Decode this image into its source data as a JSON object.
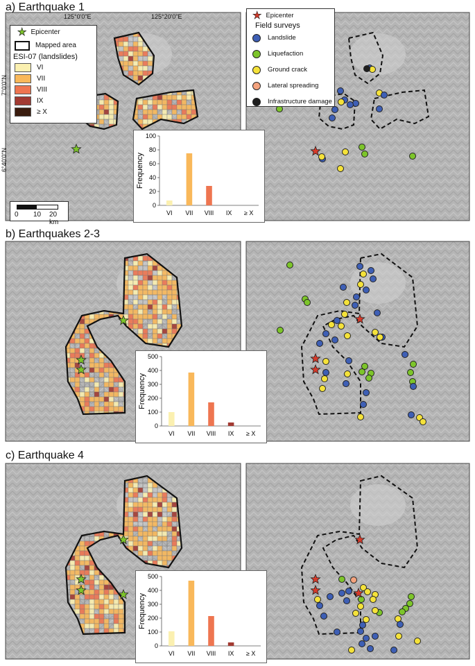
{
  "panels": [
    {
      "id": "a",
      "title": "a) Earthquake 1",
      "hist": {
        "ymax": 100,
        "yticks": [
          0,
          20,
          40,
          60,
          80,
          100
        ],
        "values": [
          7,
          75,
          28,
          0,
          0
        ]
      },
      "epicenters_left": [
        [
          110,
          215
        ]
      ],
      "epicenters_right": [
        [
          455,
          218
        ]
      ]
    },
    {
      "id": "b",
      "title": "b) Earthquakes 2-3",
      "hist": {
        "ymax": 500,
        "yticks": [
          0,
          100,
          200,
          300,
          400,
          500
        ],
        "values": [
          100,
          385,
          170,
          25,
          0
        ]
      },
      "epicenters_left": [
        [
          178,
          462
        ],
        [
          117,
          519
        ],
        [
          117,
          533
        ]
      ],
      "epicenters_right": [
        [
          519,
          460
        ],
        [
          455,
          517
        ],
        [
          455,
          533
        ]
      ]
    },
    {
      "id": "c",
      "title": "c) Earthquake 4",
      "hist": {
        "ymax": 500,
        "yticks": [
          0,
          100,
          200,
          300,
          400,
          500
        ],
        "values": [
          105,
          470,
          215,
          25,
          0
        ]
      },
      "epicenters_left": [
        [
          178,
          778
        ],
        [
          117,
          835
        ],
        [
          117,
          851
        ],
        [
          178,
          857
        ]
      ],
      "epicenters_right": [
        [
          519,
          778
        ],
        [
          455,
          835
        ],
        [
          455,
          851
        ],
        [
          517,
          855
        ]
      ]
    }
  ],
  "map_labels": {
    "lon1": "125°0'0\"E",
    "lon2": "125°20'0\"E",
    "lat1": "7°0'0\"N",
    "lat2": "6°40'0\"N"
  },
  "left_legend": {
    "epicenter": "Epicenter",
    "mapped_area": "Mapped area",
    "esi_title": "ESI-07 (landslides)",
    "classes": [
      {
        "label": "VI",
        "color": "#fbf0b0"
      },
      {
        "label": "VII",
        "color": "#f9b85a"
      },
      {
        "label": "VIII",
        "color": "#ee7550"
      },
      {
        "label": "IX",
        "color": "#a23a32"
      },
      {
        "label": "≥ X",
        "color": "#3a1c0e"
      }
    ]
  },
  "scale": {
    "ticks": [
      "0",
      "10",
      "20 km"
    ]
  },
  "hist_axis": {
    "ylabel": "Frequency",
    "categories": [
      "VI",
      "VII",
      "VIII",
      "IX",
      "≥ X"
    ],
    "bar_colors": [
      "#fbf0b0",
      "#f9b85a",
      "#ee7550",
      "#a23a32",
      "#3a1c0e"
    ]
  },
  "right_legend": {
    "epicenter": "Epicenter",
    "title": "Field surveys",
    "items": [
      {
        "label": "Landslide",
        "color": "#3e5fb5"
      },
      {
        "label": "Liquefaction",
        "color": "#7dc52a"
      },
      {
        "label": "Ground crack",
        "color": "#f5e23a"
      },
      {
        "label": "Lateral spreading",
        "color": "#f4a37e"
      },
      {
        "label": "Infrastructure damage",
        "color": "#1e1e1e"
      }
    ]
  },
  "survey_points": {
    "a": [
      [
        "#3e5fb5",
        533,
        98
      ],
      [
        "#3e5fb5",
        491,
        131
      ],
      [
        "#3e5fb5",
        497,
        144
      ],
      [
        "#f5e23a",
        492,
        147
      ],
      [
        "#3e5fb5",
        483,
        158
      ],
      [
        "#3e5fb5",
        479,
        170
      ],
      [
        "#f5e23a",
        547,
        134
      ],
      [
        "#3e5fb5",
        554,
        137
      ],
      [
        "#3e5fb5",
        547,
        157
      ],
      [
        "#3e5fb5",
        513,
        149
      ],
      [
        "#f5e23a",
        537,
        100
      ],
      [
        "#7dc52a",
        403,
        157
      ],
      [
        "#7dc52a",
        522,
        212
      ],
      [
        "#7dc52a",
        526,
        222
      ],
      [
        "#7dc52a",
        595,
        225
      ],
      [
        "#f5e23a",
        498,
        219
      ],
      [
        "#f5e23a",
        491,
        243
      ],
      [
        "#3e5fb5",
        465,
        229
      ],
      [
        "#f5e23a",
        464,
        226
      ],
      [
        "#3e5fb5",
        505,
        151
      ],
      [
        "#1e1e1e",
        529,
        99
      ]
    ],
    "b": [
      [
        "#7dc52a",
        418,
        382
      ],
      [
        "#7dc52a",
        440,
        431
      ],
      [
        "#7dc52a",
        443,
        436
      ],
      [
        "#7dc52a",
        404,
        476
      ],
      [
        "#3e5fb5",
        519,
        384
      ],
      [
        "#3e5fb5",
        535,
        390
      ],
      [
        "#f5e23a",
        524,
        395
      ],
      [
        "#3e5fb5",
        538,
        402
      ],
      [
        "#f5e23a",
        520,
        410
      ],
      [
        "#3e5fb5",
        528,
        418
      ],
      [
        "#3e5fb5",
        495,
        414
      ],
      [
        "#f5e23a",
        500,
        436
      ],
      [
        "#3e5fb5",
        514,
        428
      ],
      [
        "#3e5fb5",
        512,
        440
      ],
      [
        "#f5e23a",
        497,
        453
      ],
      [
        "#3e5fb5",
        486,
        462
      ],
      [
        "#f5e23a",
        478,
        468
      ],
      [
        "#f5e23a",
        492,
        470
      ],
      [
        "#3e5fb5",
        470,
        481
      ],
      [
        "#f5e23a",
        501,
        484
      ],
      [
        "#3e5fb5",
        544,
        451
      ],
      [
        "#f5e23a",
        541,
        479
      ],
      [
        "#3e5fb5",
        551,
        486
      ],
      [
        "#f5e23a",
        548,
        486
      ],
      [
        "#3e5fb5",
        461,
        495
      ],
      [
        "#3e5fb5",
        483,
        490
      ],
      [
        "#f5e23a",
        470,
        521
      ],
      [
        "#3e5fb5",
        470,
        537
      ],
      [
        "#f5e23a",
        501,
        539
      ],
      [
        "#3e5fb5",
        499,
        553
      ],
      [
        "#f5e23a",
        468,
        546
      ],
      [
        "#f5e23a",
        465,
        560
      ],
      [
        "#7dc52a",
        526,
        528
      ],
      [
        "#7dc52a",
        522,
        536
      ],
      [
        "#7dc52a",
        535,
        538
      ],
      [
        "#7dc52a",
        532,
        545
      ],
      [
        "#7dc52a",
        596,
        525
      ],
      [
        "#7dc52a",
        592,
        537
      ],
      [
        "#7dc52a",
        595,
        550
      ],
      [
        "#3e5fb5",
        584,
        511
      ],
      [
        "#3e5fb5",
        596,
        557
      ],
      [
        "#3e5fb5",
        528,
        566
      ],
      [
        "#3e5fb5",
        524,
        583
      ],
      [
        "#f5e23a",
        520,
        601
      ],
      [
        "#3e5fb5",
        593,
        598
      ],
      [
        "#f5e23a",
        605,
        602
      ],
      [
        "#f5e23a",
        610,
        608
      ],
      [
        "#3e5fb5",
        503,
        520
      ]
    ],
    "c": [
      [
        "#f4a37e",
        510,
        836
      ],
      [
        "#f5e23a",
        524,
        847
      ],
      [
        "#f5e23a",
        530,
        853
      ],
      [
        "#f5e23a",
        541,
        857
      ],
      [
        "#f5e23a",
        538,
        864
      ],
      [
        "#3e5fb5",
        503,
        852
      ],
      [
        "#7dc52a",
        493,
        835
      ],
      [
        "#3e5fb5",
        493,
        855
      ],
      [
        "#3e5fb5",
        500,
        866
      ],
      [
        "#7dc52a",
        521,
        864
      ],
      [
        "#f5e23a",
        520,
        874
      ],
      [
        "#3e5fb5",
        461,
        873
      ],
      [
        "#f5e23a",
        458,
        864
      ],
      [
        "#3e5fb5",
        476,
        860
      ],
      [
        "#3e5fb5",
        467,
        888
      ],
      [
        "#7dc52a",
        547,
        883
      ],
      [
        "#f5e23a",
        513,
        884
      ],
      [
        "#f5e23a",
        528,
        893
      ],
      [
        "#3e5fb5",
        523,
        901
      ],
      [
        "#3e5fb5",
        520,
        910
      ],
      [
        "#3e5fb5",
        528,
        920
      ],
      [
        "#3e5fb5",
        522,
        928
      ],
      [
        "#f5e23a",
        507,
        937
      ],
      [
        "#3e5fb5",
        534,
        935
      ],
      [
        "#3e5fb5",
        541,
        917
      ],
      [
        "#f5e23a",
        541,
        880
      ],
      [
        "#7dc52a",
        585,
        877
      ],
      [
        "#7dc52a",
        591,
        870
      ],
      [
        "#7dc52a",
        593,
        860
      ],
      [
        "#7dc52a",
        580,
        882
      ],
      [
        "#f5e23a",
        574,
        892
      ],
      [
        "#3e5fb5",
        577,
        900
      ],
      [
        "#f5e23a",
        575,
        917
      ],
      [
        "#3e5fb5",
        568,
        937
      ],
      [
        "#f5e23a",
        602,
        924
      ],
      [
        "#3e5fb5",
        486,
        911
      ]
    ]
  }
}
